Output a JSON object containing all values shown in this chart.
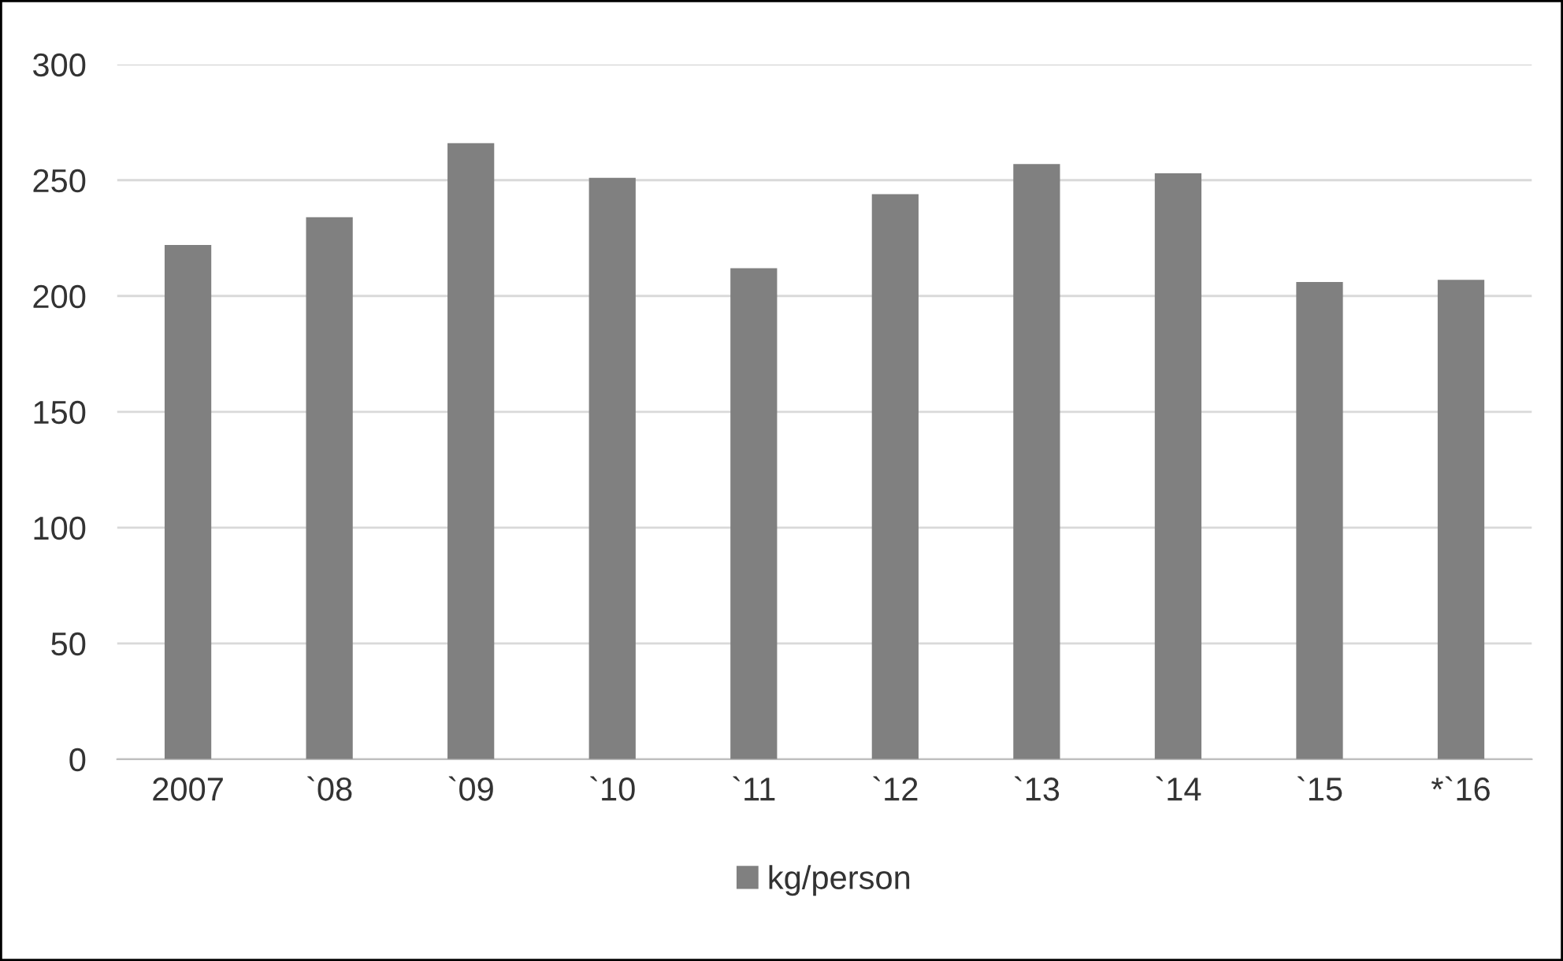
{
  "chart_data": {
    "type": "bar",
    "categories": [
      "2007",
      "`08",
      "`09",
      "`10",
      "`11",
      "`12",
      "`13",
      "`14",
      "`15",
      "*`16"
    ],
    "series": [
      {
        "name": "kg/person",
        "color": "#808080",
        "values": [
          222,
          234,
          266,
          251,
          212,
          244,
          257,
          253,
          206,
          207
        ]
      }
    ],
    "ylim": [
      0,
      300
    ],
    "yticks": [
      0,
      50,
      100,
      150,
      200,
      250,
      300
    ],
    "grid": "y",
    "legend": "bottom"
  }
}
